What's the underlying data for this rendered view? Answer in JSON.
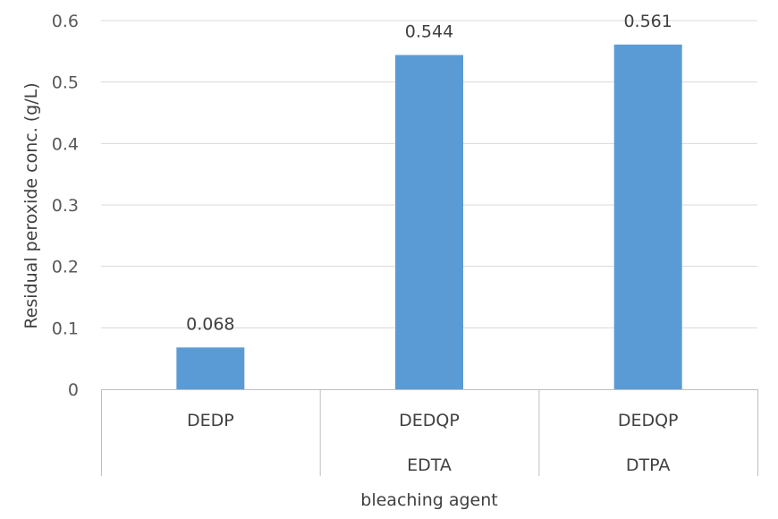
{
  "chart_data": {
    "type": "bar",
    "categories": [
      {
        "primary": "DEDP",
        "secondary": ""
      },
      {
        "primary": "DEDQP",
        "secondary": "EDTA"
      },
      {
        "primary": "DEDQP",
        "secondary": "DTPA"
      }
    ],
    "values": [
      0.068,
      0.544,
      0.561
    ],
    "data_labels": [
      "0.068",
      "0.544",
      "0.561"
    ],
    "title": "",
    "xlabel": "bleaching agent",
    "ylabel": "Residual peroxide conc. (g/L)",
    "ylim": [
      0,
      0.6
    ],
    "yticks": [
      {
        "value": 0,
        "label": "0"
      },
      {
        "value": 0.1,
        "label": "0.1"
      },
      {
        "value": 0.2,
        "label": "0.2"
      },
      {
        "value": 0.3,
        "label": "0.3"
      },
      {
        "value": 0.4,
        "label": "0.4"
      },
      {
        "value": 0.5,
        "label": "0.5"
      },
      {
        "value": 0.6,
        "label": "0.6"
      }
    ],
    "bar_color": "#5b9bd5",
    "grid": true,
    "legend": "none"
  }
}
